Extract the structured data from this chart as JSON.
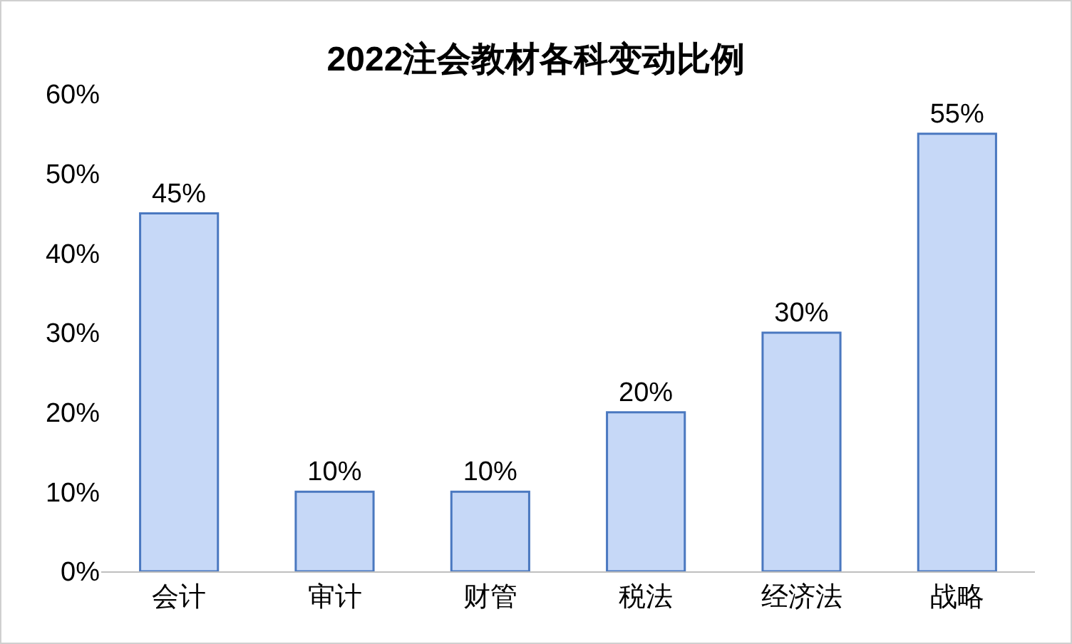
{
  "chart_data": {
    "type": "bar",
    "title": "2022注会教材各科变动比例",
    "categories": [
      "会计",
      "审计",
      "财管",
      "税法",
      "经济法",
      "战略"
    ],
    "values": [
      45,
      10,
      10,
      20,
      30,
      55
    ],
    "value_labels": [
      "45%",
      "10%",
      "10%",
      "20%",
      "30%",
      "55%"
    ],
    "color": "#c6d8f7",
    "ylim": [
      0,
      60
    ],
    "yticks": [
      {
        "value": 0,
        "label": "0%"
      },
      {
        "value": 10,
        "label": "10%"
      },
      {
        "value": 20,
        "label": "20%"
      },
      {
        "value": 30,
        "label": "30%"
      },
      {
        "value": 40,
        "label": "40%"
      },
      {
        "value": 50,
        "label": "50%"
      },
      {
        "value": 60,
        "label": "60%"
      }
    ],
    "grid": false,
    "legend": false
  }
}
